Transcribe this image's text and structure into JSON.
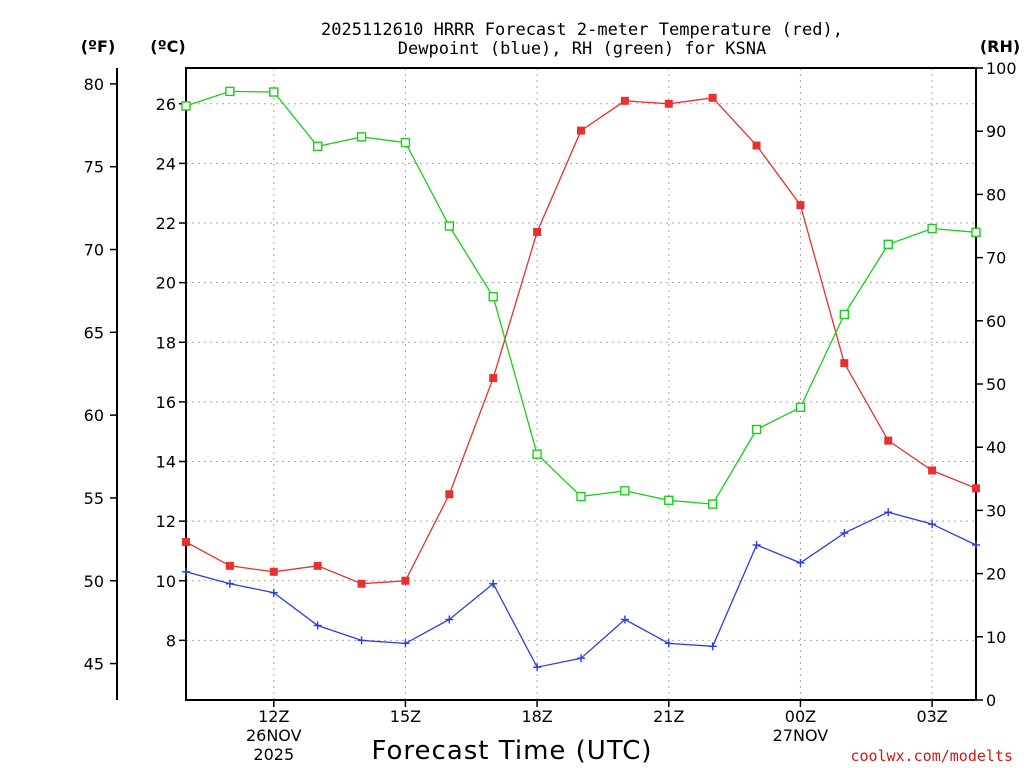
{
  "chart_data": {
    "type": "line",
    "title_lines": [
      "2025112610 HRRR Forecast 2-meter Temperature (red),",
      "Dewpoint (blue), RH (green) for KSNA"
    ],
    "xlabel": "Forecast Time (UTC)",
    "credit": "coolwx.com/modelts",
    "units": {
      "fahrenheit": "(ºF)",
      "celsius": "(ºC)",
      "rh": "(RH)"
    },
    "x_range": [
      10,
      28
    ],
    "x_ticks": [
      {
        "x": 12,
        "label": "12Z",
        "sub1": "26NOV",
        "sub2": "2025"
      },
      {
        "x": 15,
        "label": "15Z",
        "sub1": "",
        "sub2": ""
      },
      {
        "x": 18,
        "label": "18Z",
        "sub1": "",
        "sub2": ""
      },
      {
        "x": 21,
        "label": "21Z",
        "sub1": "",
        "sub2": ""
      },
      {
        "x": 24,
        "label": "00Z",
        "sub1": "27NOV",
        "sub2": ""
      },
      {
        "x": 27,
        "label": "03Z",
        "sub1": "",
        "sub2": ""
      }
    ],
    "celsius_axis": {
      "range": [
        6.0,
        27.2
      ],
      "ticks": [
        8,
        10,
        12,
        14,
        16,
        18,
        20,
        22,
        24,
        26
      ]
    },
    "fahrenheit_axis": {
      "ticks": [
        45,
        50,
        55,
        60,
        65,
        70,
        75,
        80
      ]
    },
    "rh_axis": {
      "range": [
        0,
        100
      ],
      "ticks": [
        0,
        10,
        20,
        30,
        40,
        50,
        60,
        70,
        80,
        90,
        100
      ]
    },
    "x": [
      10,
      11,
      12,
      13,
      14,
      15,
      16,
      17,
      18,
      19,
      20,
      21,
      22,
      23,
      24,
      25,
      26,
      27,
      28
    ],
    "series": [
      {
        "name": "Temperature",
        "axis": "celsius",
        "color": "#e83030",
        "marker": "filled-square",
        "values": [
          11.3,
          10.5,
          10.3,
          10.5,
          9.9,
          10.0,
          12.9,
          16.8,
          21.7,
          25.1,
          26.1,
          26.0,
          26.2,
          24.6,
          22.6,
          17.3,
          14.7,
          13.7,
          13.1
        ]
      },
      {
        "name": "Dewpoint",
        "axis": "celsius",
        "color": "#2a3ee0",
        "marker": "plus",
        "values": [
          10.3,
          9.9,
          9.6,
          8.5,
          8.0,
          7.9,
          8.7,
          9.9,
          7.1,
          7.4,
          8.7,
          7.9,
          7.8,
          11.2,
          10.6,
          11.6,
          12.3,
          11.9,
          11.2
        ]
      },
      {
        "name": "RH",
        "axis": "rh",
        "color": "#18d018",
        "marker": "open-square",
        "values": [
          94,
          96.3,
          96.2,
          87.6,
          89.1,
          88.2,
          75.0,
          63.8,
          38.9,
          32.2,
          33.1,
          31.6,
          31.0,
          42.8,
          46.3,
          61.0,
          72.1,
          74.6,
          74.0
        ]
      }
    ]
  }
}
